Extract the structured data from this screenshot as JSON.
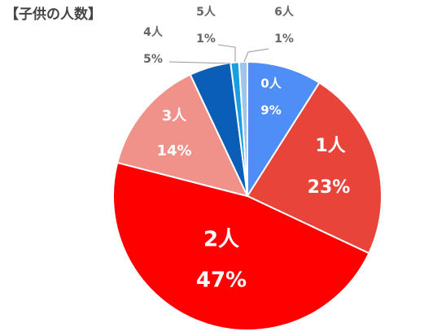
{
  "chart_data": {
    "type": "pie",
    "title": "【子供の人数】",
    "categories": [
      "0人",
      "1人",
      "2人",
      "3人",
      "4人",
      "5人",
      "6人"
    ],
    "values": [
      9,
      23,
      47,
      14,
      5,
      1,
      1
    ],
    "value_labels": [
      "9%",
      "23%",
      "47%",
      "14%",
      "5%",
      "1%",
      "1%"
    ],
    "colors": [
      "#4f8ef7",
      "#e8443a",
      "#ff0000",
      "#f0918a",
      "#0a5eb5",
      "#1a9ee0",
      "#9fc5e8"
    ]
  }
}
